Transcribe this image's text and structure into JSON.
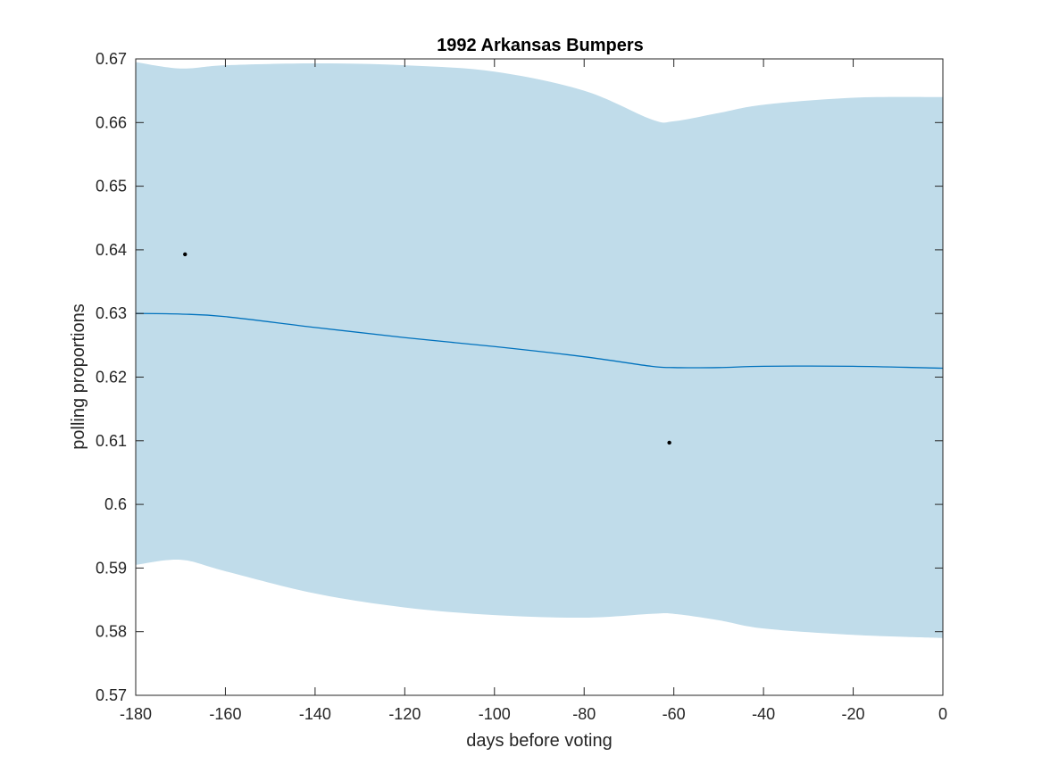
{
  "chart_data": {
    "type": "line",
    "title": "1992 Arkansas Bumpers",
    "xlabel": "days before voting",
    "ylabel": "polling proportions",
    "xlim": [
      -180,
      0
    ],
    "ylim": [
      0.57,
      0.67
    ],
    "xticks": [
      -180,
      -160,
      -140,
      -120,
      -100,
      -80,
      -60,
      -40,
      -20,
      0
    ],
    "xtick_labels": [
      "-180",
      "-160",
      "-140",
      "-120",
      "-100",
      "-80",
      "-60",
      "-40",
      "-20",
      "0"
    ],
    "yticks": [
      0.57,
      0.58,
      0.59,
      0.6,
      0.61,
      0.62,
      0.63,
      0.64,
      0.65,
      0.66,
      0.67
    ],
    "ytick_labels": [
      "0.57",
      "0.58",
      "0.59",
      "0.6",
      "0.61",
      "0.62",
      "0.63",
      "0.64",
      "0.65",
      "0.66",
      "0.67"
    ],
    "grid": false,
    "colors": {
      "band": "#c0dcea",
      "line": "#0072bd",
      "points": "#000000",
      "axes": "#262626"
    },
    "mean_line": {
      "x": [
        -180,
        -170,
        -160,
        -140,
        -120,
        -100,
        -80,
        -65,
        -60,
        -50,
        -40,
        -20,
        0
      ],
      "y": [
        0.63,
        0.6299,
        0.6295,
        0.6278,
        0.6262,
        0.6248,
        0.6232,
        0.6217,
        0.6215,
        0.6215,
        0.6217,
        0.6217,
        0.6214
      ]
    },
    "band_upper": {
      "x": [
        -180,
        -170,
        -160,
        -140,
        -120,
        -100,
        -80,
        -65,
        -60,
        -50,
        -40,
        -20,
        0
      ],
      "y": [
        0.6695,
        0.6685,
        0.669,
        0.6693,
        0.669,
        0.668,
        0.665,
        0.6605,
        0.6602,
        0.6615,
        0.6628,
        0.6639,
        0.664
      ]
    },
    "band_lower": {
      "x": [
        -180,
        -170,
        -160,
        -140,
        -120,
        -100,
        -80,
        -65,
        -60,
        -50,
        -40,
        -20,
        0
      ],
      "y": [
        0.5905,
        0.5913,
        0.5895,
        0.586,
        0.5838,
        0.5826,
        0.5822,
        0.5828,
        0.5828,
        0.5818,
        0.5805,
        0.5795,
        0.579
      ]
    },
    "points": [
      {
        "x": -169,
        "y": 0.6393
      },
      {
        "x": -61,
        "y": 0.6097
      }
    ]
  }
}
